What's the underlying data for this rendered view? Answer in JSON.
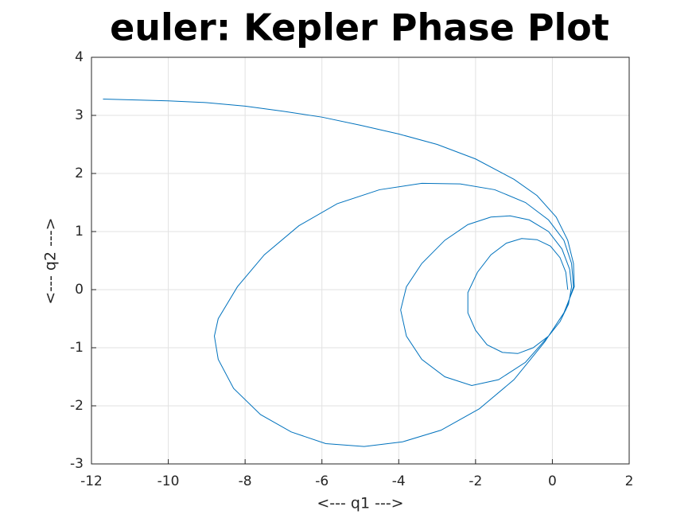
{
  "chart_data": {
    "type": "line",
    "title": "euler: Kepler Phase Plot",
    "x_label": "<---  q1  --->",
    "y_label": "<---  q2  --->",
    "xlim": [
      -12,
      2
    ],
    "ylim": [
      -3,
      4
    ],
    "xticks": [
      -12,
      -10,
      -8,
      -6,
      -4,
      -2,
      0,
      2
    ],
    "yticks": [
      -3,
      -2,
      -1,
      0,
      1,
      2,
      3,
      4
    ],
    "grid": true,
    "series": [
      {
        "color": "#0072bd",
        "x": [
          0.4,
          0.35,
          0.2,
          -0.05,
          -0.4,
          -0.8,
          -1.2,
          -1.6,
          -1.95,
          -2.2,
          -2.2,
          -2.0,
          -1.7,
          -1.3,
          -0.9,
          -0.5,
          -0.1,
          0.2,
          0.42,
          0.5,
          0.45,
          0.25,
          -0.1,
          -0.6,
          -1.1,
          -1.6,
          -2.2,
          -2.8,
          -3.4,
          -3.8,
          -3.95,
          -3.8,
          -3.4,
          -2.8,
          -2.1,
          -1.4,
          -0.7,
          -0.1,
          0.35,
          0.55,
          0.5,
          0.3,
          -0.1,
          -0.7,
          -1.5,
          -2.4,
          -3.4,
          -4.5,
          -5.6,
          -6.6,
          -7.5,
          -8.2,
          -8.7,
          -8.8,
          -8.7,
          -8.3,
          -7.6,
          -6.8,
          -5.9,
          -4.9,
          -3.9,
          -2.9,
          -1.9,
          -1.0,
          -0.2,
          0.3,
          0.57,
          0.55,
          0.4,
          0.1,
          -0.4,
          -1.0,
          -2.0,
          -3.0,
          -4.0,
          -5.0,
          -6.0,
          -7.0,
          -8.0,
          -9.0,
          -10.0,
          -11.7
        ],
        "values": [
          0,
          0.3,
          0.55,
          0.75,
          0.86,
          0.88,
          0.8,
          0.6,
          0.3,
          -0.05,
          -0.4,
          -0.7,
          -0.95,
          -1.08,
          -1.1,
          -1.0,
          -0.8,
          -0.55,
          -0.25,
          0.05,
          0.35,
          0.7,
          1.0,
          1.2,
          1.27,
          1.25,
          1.12,
          0.85,
          0.45,
          0.05,
          -0.35,
          -0.8,
          -1.2,
          -1.5,
          -1.65,
          -1.55,
          -1.25,
          -0.8,
          -0.35,
          0.05,
          0.45,
          0.85,
          1.2,
          1.5,
          1.72,
          1.82,
          1.83,
          1.72,
          1.48,
          1.1,
          0.6,
          0.05,
          -0.5,
          -0.8,
          -1.2,
          -1.7,
          -2.15,
          -2.45,
          -2.65,
          -2.7,
          -2.62,
          -2.42,
          -2.05,
          -1.55,
          -0.9,
          -0.4,
          0.05,
          0.45,
          0.85,
          1.25,
          1.62,
          1.9,
          2.25,
          2.5,
          2.68,
          2.83,
          2.97,
          3.07,
          3.16,
          3.22,
          3.25,
          3.28
        ]
      }
    ]
  }
}
